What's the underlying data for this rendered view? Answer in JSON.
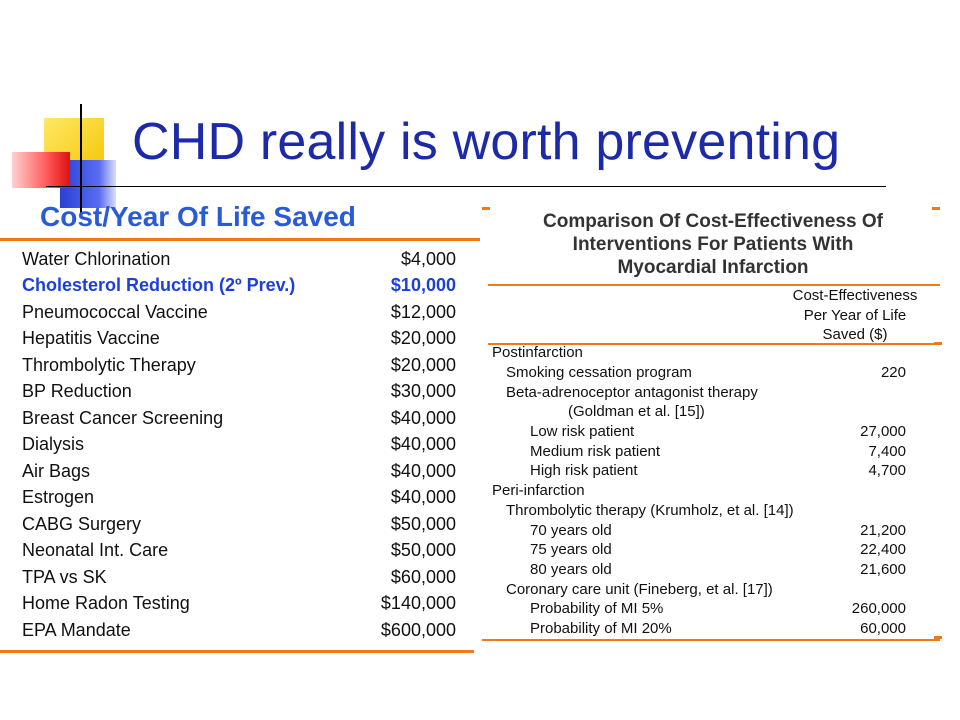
{
  "slide": {
    "title": "CHD really is worth preventing"
  },
  "left_table": {
    "title": "Cost/Year Of Life Saved",
    "rows": [
      {
        "label": "Water Chlorination",
        "value": "$4,000"
      },
      {
        "label": "Cholesterol Reduction (2º Prev.)",
        "value": "$10,000"
      },
      {
        "label": "Pneumococcal Vaccine",
        "value": "$12,000"
      },
      {
        "label": "Hepatitis Vaccine",
        "value": "$20,000"
      },
      {
        "label": "Thrombolytic Therapy",
        "value": "$20,000"
      },
      {
        "label": "BP Reduction",
        "value": "$30,000"
      },
      {
        "label": "Breast Cancer Screening",
        "value": "$40,000"
      },
      {
        "label": "Dialysis",
        "value": "$40,000"
      },
      {
        "label": "Air Bags",
        "value": "$40,000"
      },
      {
        "label": "Estrogen",
        "value": "$40,000"
      },
      {
        "label": "CABG Surgery",
        "value": "$50,000"
      },
      {
        "label": "Neonatal Int. Care",
        "value": "$50,000"
      },
      {
        "label": "TPA vs SK",
        "value": "$60,000"
      },
      {
        "label": "Home Radon Testing",
        "value": "$140,000"
      },
      {
        "label": "EPA Mandate",
        "value": "$600,000"
      }
    ]
  },
  "right_table": {
    "title_lines": [
      "Comparison Of Cost-Effectiveness Of",
      "Interventions For Patients With",
      "Myocardial Infarction"
    ],
    "column_header": [
      "Cost-Effectiveness",
      "Per Year of Life",
      "Saved ($)"
    ],
    "rows": [
      {
        "label": "Postinfarction",
        "value": ""
      },
      {
        "label": "Smoking cessation program",
        "value": "220"
      },
      {
        "label": "Beta-adrenoceptor antagonist therapy",
        "value": ""
      },
      {
        "label": "(Goldman et al. [15])",
        "value": ""
      },
      {
        "label": "Low risk patient",
        "value": "27,000"
      },
      {
        "label": "Medium risk patient",
        "value": "7,400"
      },
      {
        "label": "High risk patient",
        "value": "4,700"
      },
      {
        "label": "Peri-infarction",
        "value": ""
      },
      {
        "label": "Thrombolytic therapy (Krumholz, et al. [14])",
        "value": ""
      },
      {
        "label": "70 years old",
        "value": "21,200"
      },
      {
        "label": "75 years old",
        "value": "22,400"
      },
      {
        "label": "80 years old",
        "value": "21,600"
      },
      {
        "label": "Coronary care unit  (Fineberg, et al. [17])",
        "value": ""
      },
      {
        "label": "Probability of MI 5%",
        "value": "260,000"
      },
      {
        "label": "Probability of MI 20%",
        "value": "60,000"
      }
    ]
  },
  "colors": {
    "title": "#1d2aa8",
    "left_title": "#2a5bd7",
    "highlight_row": "#1c3fdc",
    "rule": "#f07a18"
  }
}
